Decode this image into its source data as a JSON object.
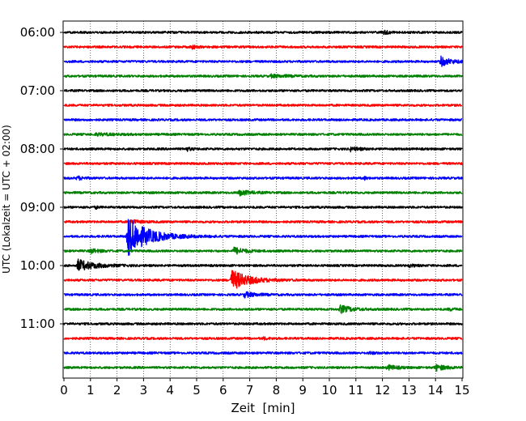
{
  "chart_data": {
    "type": "line",
    "subtype": "seismogram-helicorder",
    "xlabel": "Zeit  [min]",
    "ylabel": "UTC (Lokalzeit = UTC + 02:00)",
    "xlim": [
      0,
      15
    ],
    "x_ticks": [
      "0",
      "1",
      "2",
      "3",
      "4",
      "5",
      "6",
      "7",
      "8",
      "9",
      "10",
      "11",
      "12",
      "13",
      "14",
      "15"
    ],
    "y_tick_labels": [
      "06:00",
      "07:00",
      "08:00",
      "09:00",
      "10:00",
      "11:00"
    ],
    "grid": "vertical dotted at each minute",
    "color_cycle": [
      "#000000",
      "#ff0000",
      "#0000ff",
      "#008000"
    ],
    "traces": [
      {
        "start": "06:00",
        "color": "#000000",
        "events": [
          {
            "t": 12.0,
            "a": 0.25,
            "d": 0.6
          }
        ]
      },
      {
        "start": "06:15",
        "color": "#ff0000",
        "events": [
          {
            "t": 4.8,
            "a": 0.3,
            "d": 0.4
          }
        ]
      },
      {
        "start": "06:30",
        "color": "#0000ff",
        "events": [
          {
            "t": 14.2,
            "a": 0.7,
            "d": 0.9
          }
        ]
      },
      {
        "start": "06:45",
        "color": "#008000",
        "events": [
          {
            "t": 7.8,
            "a": 0.2,
            "d": 1.5
          }
        ]
      },
      {
        "start": "07:00",
        "color": "#000000",
        "events": []
      },
      {
        "start": "07:15",
        "color": "#ff0000",
        "events": []
      },
      {
        "start": "07:30",
        "color": "#0000ff",
        "events": []
      },
      {
        "start": "07:45",
        "color": "#008000",
        "events": [
          {
            "t": 1.2,
            "a": 0.15,
            "d": 2.0
          }
        ]
      },
      {
        "start": "08:00",
        "color": "#000000",
        "events": [
          {
            "t": 4.6,
            "a": 0.3,
            "d": 0.4
          },
          {
            "t": 10.8,
            "a": 0.3,
            "d": 0.8
          }
        ]
      },
      {
        "start": "08:15",
        "color": "#ff0000",
        "events": []
      },
      {
        "start": "08:30",
        "color": "#0000ff",
        "events": [
          {
            "t": 0.5,
            "a": 0.3,
            "d": 0.5
          },
          {
            "t": 11.3,
            "a": 0.3,
            "d": 0.2
          }
        ]
      },
      {
        "start": "08:45",
        "color": "#008000",
        "events": [
          {
            "t": 6.6,
            "a": 0.4,
            "d": 1.0
          }
        ]
      },
      {
        "start": "09:00",
        "color": "#000000",
        "events": [
          {
            "t": 1.2,
            "a": 0.2,
            "d": 0.2
          }
        ]
      },
      {
        "start": "09:15",
        "color": "#ff0000",
        "events": [
          {
            "t": 2.5,
            "a": 0.3,
            "d": 0.8
          }
        ]
      },
      {
        "start": "09:30",
        "color": "#0000ff",
        "events": [
          {
            "t": 2.4,
            "a": 3.0,
            "d": 1.8
          }
        ]
      },
      {
        "start": "09:45",
        "color": "#008000",
        "events": [
          {
            "t": 1.0,
            "a": 0.3,
            "d": 0.8
          },
          {
            "t": 6.4,
            "a": 0.5,
            "d": 1.0
          }
        ]
      },
      {
        "start": "10:00",
        "color": "#000000",
        "events": [
          {
            "t": 0.5,
            "a": 0.9,
            "d": 1.5
          },
          {
            "t": 13.0,
            "a": 0.2,
            "d": 0.5
          }
        ]
      },
      {
        "start": "10:15",
        "color": "#ff0000",
        "events": [
          {
            "t": 6.3,
            "a": 1.6,
            "d": 1.5
          }
        ]
      },
      {
        "start": "10:30",
        "color": "#0000ff",
        "events": [
          {
            "t": 6.8,
            "a": 0.4,
            "d": 1.0
          }
        ]
      },
      {
        "start": "10:45",
        "color": "#008000",
        "events": [
          {
            "t": 10.4,
            "a": 0.6,
            "d": 1.0
          },
          {
            "t": 14.5,
            "a": 0.2,
            "d": 0.5
          }
        ]
      },
      {
        "start": "11:00",
        "color": "#000000",
        "events": []
      },
      {
        "start": "11:15",
        "color": "#ff0000",
        "events": [
          {
            "t": 7.5,
            "a": 0.15,
            "d": 0.5
          }
        ]
      },
      {
        "start": "11:30",
        "color": "#0000ff",
        "events": [
          {
            "t": 11.5,
            "a": 0.15,
            "d": 0.6
          }
        ]
      },
      {
        "start": "11:45",
        "color": "#008000",
        "events": [
          {
            "t": 12.2,
            "a": 0.35,
            "d": 0.8
          },
          {
            "t": 14.0,
            "a": 0.45,
            "d": 0.9
          }
        ]
      }
    ]
  }
}
